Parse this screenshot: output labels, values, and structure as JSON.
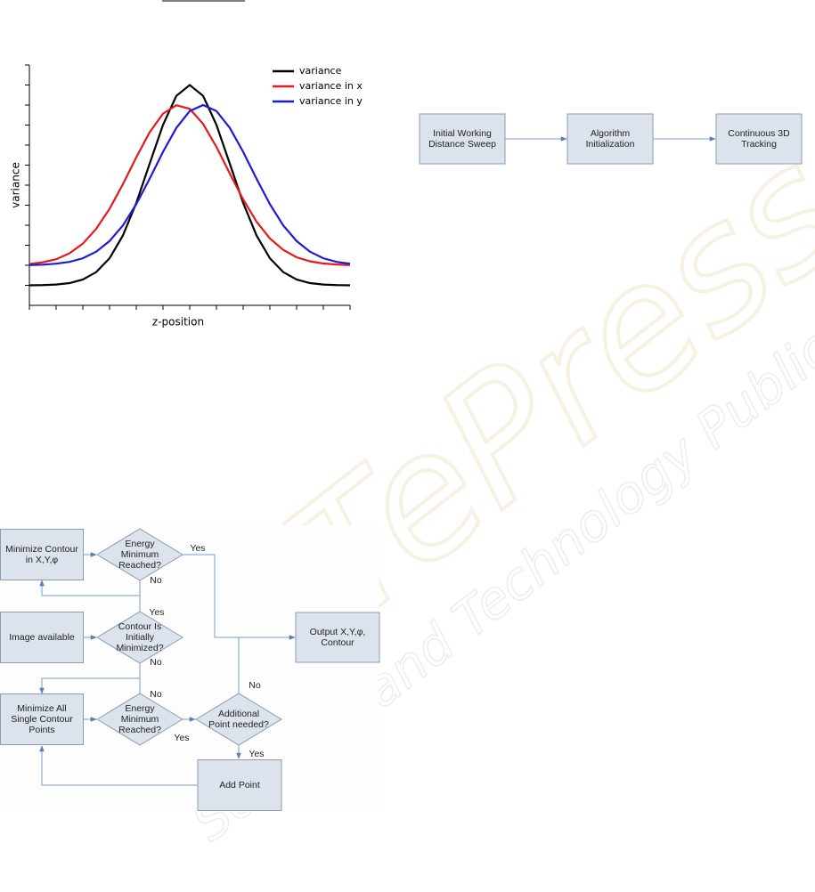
{
  "chart_data": {
    "type": "line",
    "x_label": "z-position",
    "y_label": "variance",
    "x": [
      0,
      0.5,
      1,
      1.5,
      2,
      2.5,
      3,
      3.5,
      4,
      4.5,
      5,
      5.5,
      6,
      6.5,
      7,
      7.5,
      8,
      8.5,
      9,
      9.5,
      10,
      10.5,
      11,
      11.5,
      12
    ],
    "series": [
      {
        "name": "variance",
        "color": "#000000",
        "values": [
          1.0,
          1.01,
          1.04,
          1.11,
          1.29,
          1.66,
          2.35,
          3.49,
          5.11,
          7.07,
          9.01,
          10.46,
          11,
          10.46,
          9.01,
          7.07,
          5.11,
          3.49,
          2.35,
          1.66,
          1.29,
          1.11,
          1.04,
          1.01,
          1.0
        ]
      },
      {
        "name": "variance in x",
        "color": "#e41a1c",
        "values": [
          2.06,
          2.15,
          2.3,
          2.6,
          3.08,
          3.82,
          4.82,
          6.05,
          7.39,
          8.64,
          9.57,
          9.99,
          9.81,
          9.06,
          7.91,
          6.58,
          5.29,
          4.18,
          3.34,
          2.77,
          2.4,
          2.2,
          2.09,
          2.04,
          2.01
        ]
      },
      {
        "name": "variance in y",
        "color": "#1c1cd8",
        "values": [
          2.01,
          2.03,
          2.08,
          2.17,
          2.35,
          2.68,
          3.21,
          3.99,
          5.05,
          6.32,
          7.66,
          8.86,
          9.7,
          10,
          9.7,
          8.86,
          7.66,
          6.32,
          5.05,
          3.99,
          3.21,
          2.68,
          2.35,
          2.17,
          2.08
        ]
      }
    ],
    "xlim": [
      0,
      12
    ],
    "ylim": [
      0,
      12
    ],
    "xticks": [
      0,
      1,
      2,
      3,
      4,
      5,
      6,
      7,
      8,
      9,
      10,
      11,
      12
    ],
    "yticks": [
      1,
      2,
      3,
      4,
      5,
      6,
      7,
      8,
      9,
      10,
      11,
      12
    ],
    "legend": "upper right"
  },
  "process_flow": {
    "nodes": [
      {
        "label": [
          "Initial Working",
          "Distance Sweep"
        ]
      },
      {
        "label": [
          "Algorithm",
          "Initialization"
        ]
      },
      {
        "label": [
          "Continuous 3D",
          "Tracking"
        ]
      }
    ]
  },
  "flowchart": {
    "nodes": [
      {
        "label": [
          "Minimize Contour",
          "in X,Y,φ"
        ]
      },
      {
        "label": [
          "Energy",
          "Minimum",
          "Reached?"
        ]
      },
      {
        "label": [
          "Image available"
        ]
      },
      {
        "label": [
          "Contour Is",
          "Initially",
          "Minimized?"
        ]
      },
      {
        "label": [
          "Minimize All",
          "Single Contour",
          "Points"
        ]
      },
      {
        "label": [
          "Energy",
          "Minimum",
          "Reached?"
        ]
      },
      {
        "label": [
          "Additional",
          "Point needed?"
        ]
      },
      {
        "label": [
          "Output X,Y,φ,",
          "Contour"
        ]
      },
      {
        "label": [
          "Add Point"
        ]
      }
    ],
    "edge_labels": [
      "Yes",
      "No",
      "Yes",
      "No",
      "No",
      "Yes",
      "No",
      "Yes"
    ]
  },
  "watermark": {
    "title": "SciTePress",
    "subtitle": "Science and Technology Publications"
  }
}
